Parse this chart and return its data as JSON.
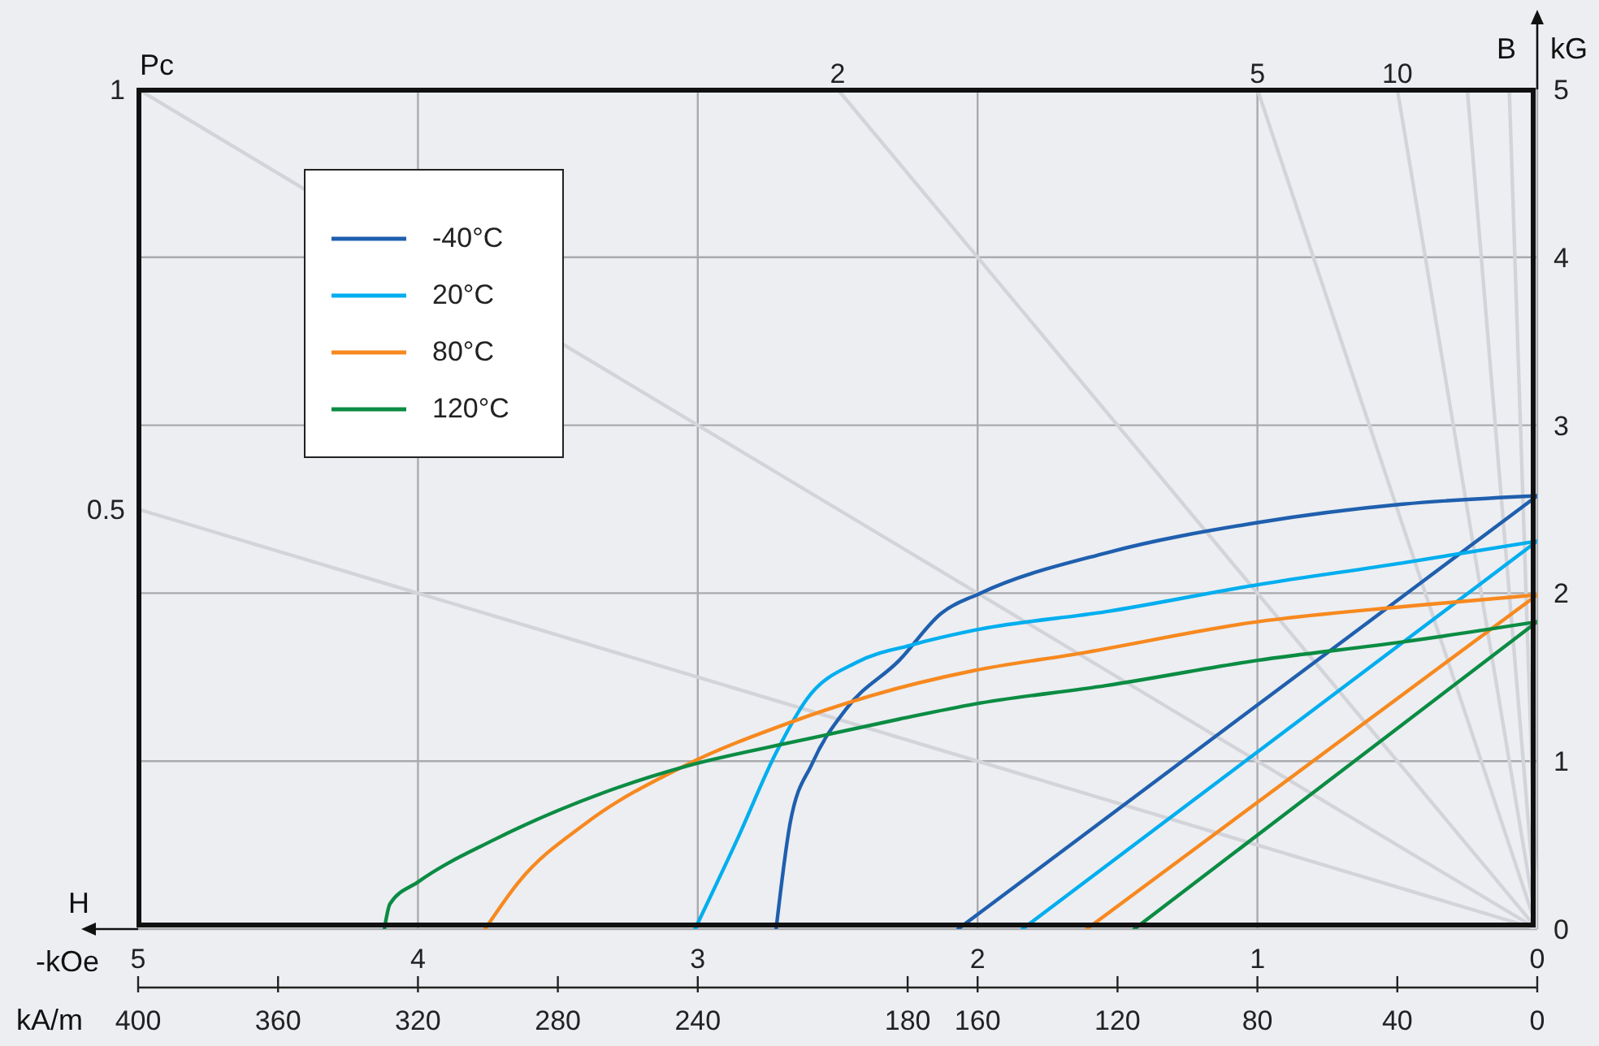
{
  "chart_data": {
    "type": "line",
    "xlabel": "-kOe",
    "ylabel": "kG",
    "x2label": "kA/m",
    "xlim": [
      5,
      0
    ],
    "xticks": [
      5,
      4,
      3,
      2,
      1,
      0
    ],
    "ylim": [
      0,
      5
    ],
    "yticks": [
      0,
      1,
      2,
      3,
      4,
      5
    ],
    "x2lim": [
      400,
      0
    ],
    "x2ticks": [
      400,
      360,
      320,
      280,
      240,
      180,
      160,
      120,
      80,
      40,
      0
    ],
    "grid": true,
    "legend": "top left",
    "marker": "none",
    "line_style": "solid",
    "annotations": [
      "Pc",
      "H",
      "B",
      {
        "text": "1",
        "x": 5,
        "y": 5
      },
      {
        "text": "0.5",
        "x": 5,
        "y": 2.5
      },
      {
        "text": "2",
        "x": 2.5,
        "y": 5
      },
      {
        "text": "5",
        "x": 1,
        "y": 5
      },
      {
        "text": "10",
        "x": 0.5,
        "y": 5
      }
    ],
    "series": [
      {
        "color": "#d3d4d9",
        "x": [
          5,
          0
        ],
        "values": [
          5,
          0
        ]
      },
      {
        "color": "#d3d4d9",
        "x": [
          5,
          0
        ],
        "values": [
          2.5,
          0
        ]
      },
      {
        "color": "#d3d4d9",
        "x": [
          2.5,
          0
        ],
        "values": [
          5,
          0
        ]
      },
      {
        "color": "#d3d4d9",
        "x": [
          1,
          0
        ],
        "values": [
          5,
          0
        ]
      },
      {
        "color": "#d3d4d9",
        "x": [
          0.5,
          0
        ],
        "values": [
          5,
          0
        ]
      },
      {
        "color": "#d3d4d9",
        "x": [
          0.25,
          0
        ],
        "values": [
          5,
          0
        ]
      },
      {
        "color": "#d3d4d9",
        "x": [
          0.1,
          0
        ],
        "values": [
          5,
          0
        ]
      },
      {
        "name": "-40°C",
        "color": "#1f5fae",
        "x": [
          0,
          0.48,
          1.0,
          1.54,
          1.99,
          2.13,
          2.28,
          2.47,
          2.59,
          2.67,
          2.72
        ],
        "values": [
          2.58,
          2.53,
          2.42,
          2.24,
          2.0,
          1.88,
          1.6,
          1.31,
          0.99,
          0.63,
          0
        ]
      },
      {
        "color": "#1f5fae",
        "x": [
          0,
          2.07
        ],
        "values": [
          2.58,
          0
        ]
      },
      {
        "name": "20°C",
        "color": "#00aeef",
        "x": [
          0,
          0.48,
          1.0,
          1.54,
          2.01,
          2.24,
          2.43,
          2.61,
          2.72,
          2.86,
          3.01
        ],
        "values": [
          2.31,
          2.18,
          2.05,
          1.89,
          1.78,
          1.69,
          1.59,
          1.37,
          1.05,
          0.53,
          0
        ]
      },
      {
        "color": "#00aeef",
        "x": [
          0,
          1.84
        ],
        "values": [
          2.31,
          0
        ]
      },
      {
        "name": "80°C",
        "color": "#f7891f",
        "x": [
          0,
          0.48,
          1.0,
          1.64,
          2.01,
          2.38,
          2.67,
          3.05,
          3.4,
          3.64,
          3.76
        ],
        "values": [
          1.99,
          1.92,
          1.83,
          1.64,
          1.54,
          1.39,
          1.23,
          0.97,
          0.63,
          0.28,
          0
        ]
      },
      {
        "color": "#f7891f",
        "x": [
          0,
          1.61
        ],
        "values": [
          1.99,
          0
        ]
      },
      {
        "name": "120°C",
        "color": "#0b8c43",
        "x": [
          0,
          0.48,
          1.0,
          1.54,
          2.01,
          2.28,
          2.67,
          3.04,
          3.34,
          3.73,
          4.0,
          4.1,
          4.12
        ],
        "values": [
          1.83,
          1.71,
          1.6,
          1.45,
          1.34,
          1.25,
          1.11,
          0.97,
          0.81,
          0.53,
          0.28,
          0.15,
          0
        ]
      },
      {
        "color": "#0b8c43",
        "x": [
          0,
          1.44
        ],
        "values": [
          1.83,
          0
        ]
      }
    ]
  }
}
